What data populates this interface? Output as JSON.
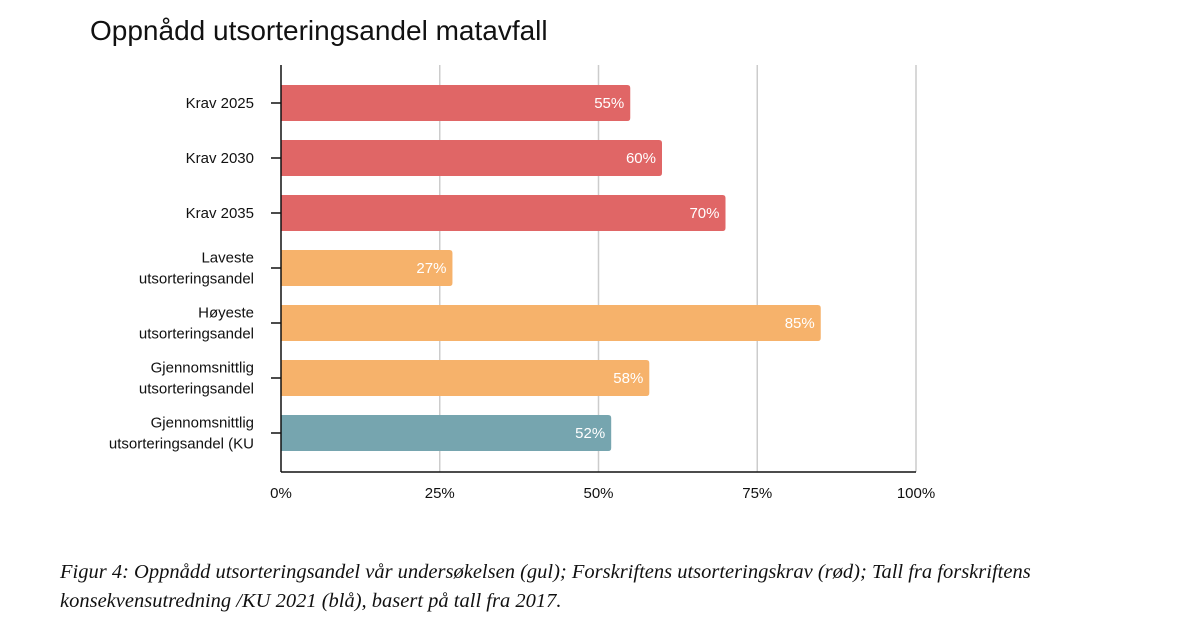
{
  "chart_data": {
    "type": "bar",
    "orientation": "horizontal",
    "title": "Oppnådd utsorteringsandel matavfall",
    "categories": [
      [
        "Krav 2025"
      ],
      [
        "Krav 2030"
      ],
      [
        "Krav 2035"
      ],
      [
        "Laveste",
        "utsorteringsandel"
      ],
      [
        "Høyeste",
        "utsorteringsandel"
      ],
      [
        "Gjennomsnittlig",
        "utsorteringsandel"
      ],
      [
        "Gjennomsnittlig",
        "utsorteringsandel (KU"
      ]
    ],
    "values": [
      55,
      60,
      70,
      27,
      85,
      58,
      52
    ],
    "data_labels": [
      "55%",
      "60%",
      "70%",
      "27%",
      "85%",
      "58%",
      "52%"
    ],
    "bar_colors": [
      "#e06666",
      "#e06666",
      "#e06666",
      "#f6b26b",
      "#f6b26b",
      "#f6b26b",
      "#76a5af"
    ],
    "xlim": [
      0,
      100
    ],
    "x_ticks": [
      0,
      25,
      50,
      75,
      100
    ],
    "x_tick_labels": [
      "0%",
      "25%",
      "50%",
      "75%",
      "100%"
    ],
    "grid": true,
    "gridline_color": "#cccccc"
  },
  "caption": "Figur 4: Oppnådd utsorteringsandel vår undersøkelsen (gul); Forskriftens utsorteringskrav (rød); Tall fra forskriftens konsekvensutredning /KU 2021 (blå), basert på tall fra 2017."
}
